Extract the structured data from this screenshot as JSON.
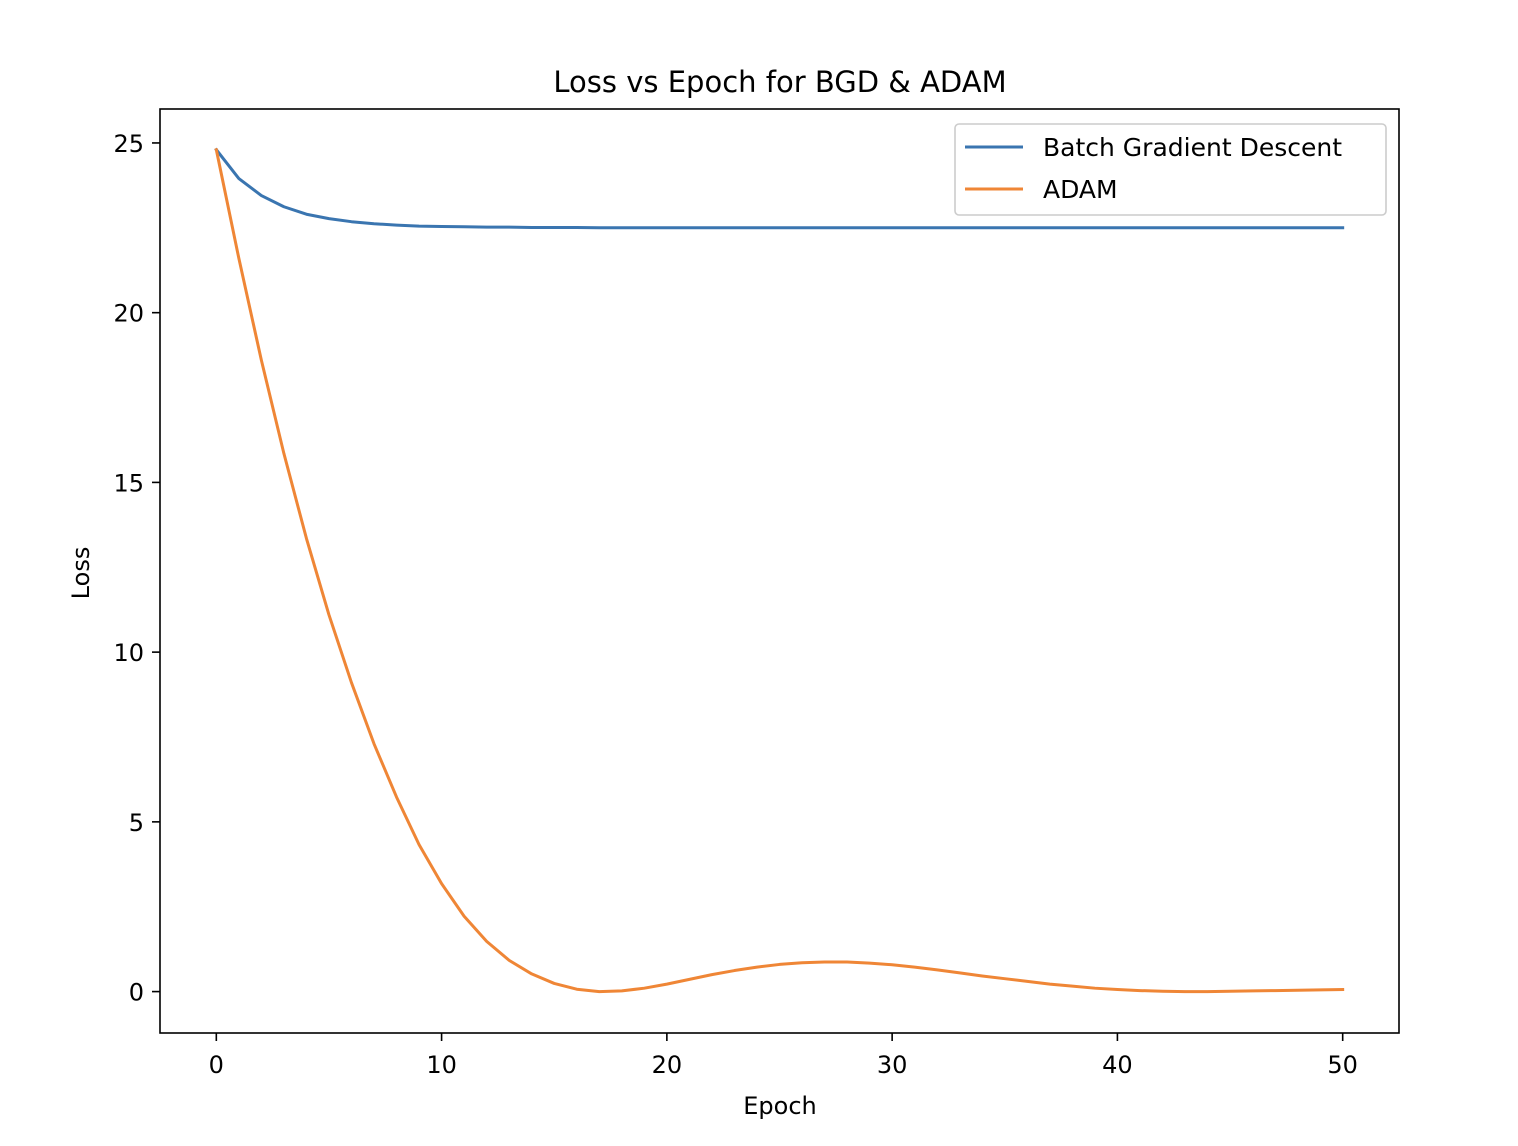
{
  "chart_data": {
    "type": "line",
    "title": "Loss vs Epoch for  BGD & ADAM",
    "xlabel": "Epoch",
    "ylabel": "Loss",
    "xlim": [
      -2.5,
      52.5
    ],
    "ylim": [
      -1.22,
      26.0
    ],
    "xticks": [
      0,
      10,
      20,
      30,
      40,
      50
    ],
    "yticks": [
      0,
      5,
      10,
      15,
      20,
      25
    ],
    "grid": false,
    "legend_position": "top-right",
    "series": [
      {
        "name": "Batch Gradient Descent",
        "color": "#3a75b0",
        "x": [
          0,
          1,
          2,
          3,
          4,
          5,
          6,
          7,
          8,
          9,
          10,
          11,
          12,
          13,
          14,
          15,
          16,
          17,
          18,
          19,
          20,
          21,
          22,
          23,
          24,
          25,
          26,
          27,
          28,
          29,
          30,
          31,
          32,
          33,
          34,
          35,
          36,
          37,
          38,
          39,
          40,
          41,
          42,
          43,
          44,
          45,
          46,
          47,
          48,
          49,
          50
        ],
        "values": [
          24.8,
          23.95,
          23.45,
          23.12,
          22.9,
          22.77,
          22.68,
          22.62,
          22.58,
          22.55,
          22.54,
          22.53,
          22.52,
          22.52,
          22.51,
          22.51,
          22.51,
          22.5,
          22.5,
          22.5,
          22.5,
          22.5,
          22.5,
          22.5,
          22.5,
          22.5,
          22.5,
          22.5,
          22.5,
          22.5,
          22.5,
          22.5,
          22.5,
          22.5,
          22.5,
          22.5,
          22.5,
          22.5,
          22.5,
          22.5,
          22.5,
          22.5,
          22.5,
          22.5,
          22.5,
          22.5,
          22.5,
          22.5,
          22.5,
          22.5,
          22.5
        ]
      },
      {
        "name": "ADAM",
        "color": "#ef8636",
        "x": [
          0,
          1,
          2,
          3,
          4,
          5,
          6,
          7,
          8,
          9,
          10,
          11,
          12,
          13,
          14,
          15,
          16,
          17,
          18,
          19,
          20,
          21,
          22,
          23,
          24,
          25,
          26,
          27,
          28,
          29,
          30,
          31,
          32,
          33,
          34,
          35,
          36,
          37,
          38,
          39,
          40,
          41,
          42,
          43,
          44,
          45,
          46,
          47,
          48,
          49,
          50
        ],
        "values": [
          24.8,
          21.6,
          18.6,
          15.85,
          13.35,
          11.1,
          9.1,
          7.3,
          5.73,
          4.33,
          3.18,
          2.22,
          1.48,
          0.92,
          0.52,
          0.24,
          0.07,
          0.0,
          0.02,
          0.1,
          0.22,
          0.36,
          0.5,
          0.62,
          0.72,
          0.8,
          0.85,
          0.87,
          0.87,
          0.84,
          0.79,
          0.72,
          0.64,
          0.55,
          0.46,
          0.38,
          0.3,
          0.22,
          0.16,
          0.1,
          0.06,
          0.03,
          0.01,
          0.0,
          0.0,
          0.01,
          0.02,
          0.03,
          0.04,
          0.05,
          0.06
        ]
      }
    ]
  }
}
